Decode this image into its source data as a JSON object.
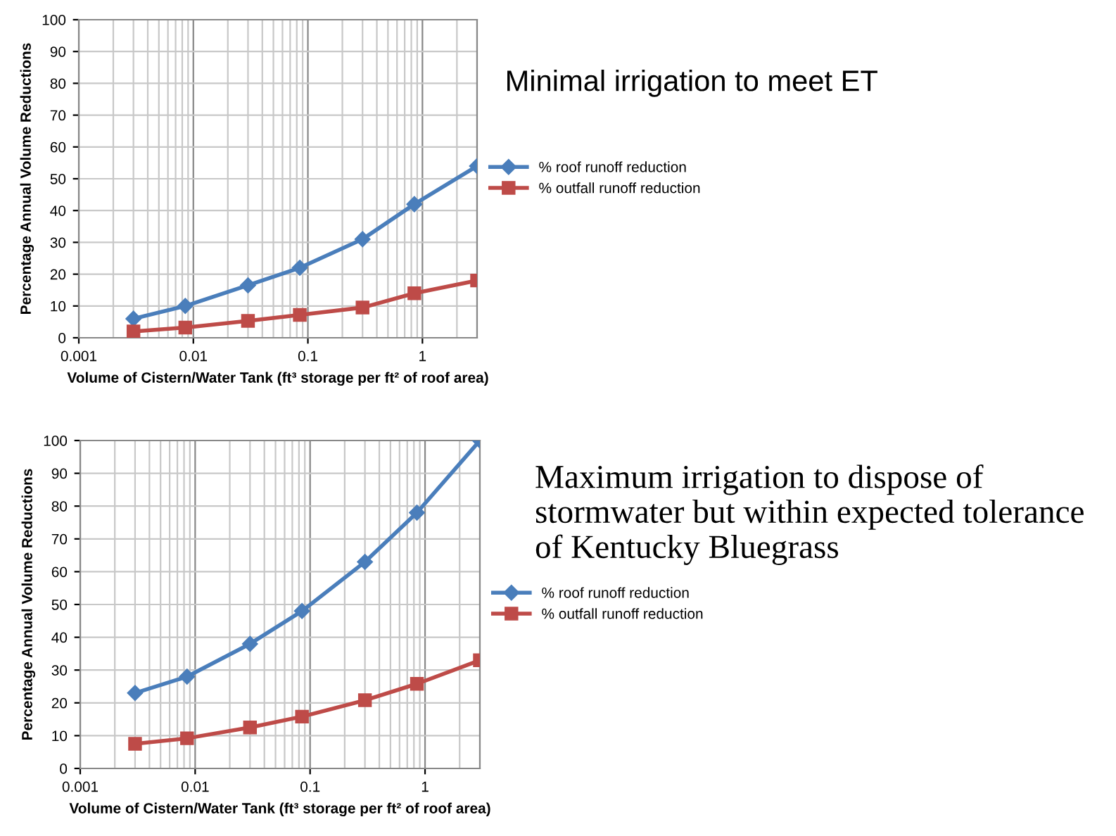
{
  "chart_data": [
    {
      "type": "line",
      "xlabel": "Volume of Cistern/Water Tank (ft³ storage per ft² of roof area)",
      "ylabel": "Percentage Annual Volume Reductions",
      "annotations": [
        "Minimal irrigation to meet ET"
      ],
      "x": [
        0.003,
        0.0085,
        0.03,
        0.085,
        0.3,
        0.85,
        3
      ],
      "series": [
        {
          "name": "% roof runoff reduction",
          "color": "#4a7ebb",
          "marker": "diamond",
          "values": [
            6,
            10,
            16.5,
            22,
            31,
            42,
            54
          ]
        },
        {
          "name": "% outfall runoff reduction",
          "color": "#be4b48",
          "marker": "square",
          "values": [
            2,
            3.2,
            5.3,
            7.2,
            9.5,
            14,
            18
          ]
        }
      ],
      "log": "x",
      "xlim": [
        0.001,
        3
      ],
      "xticks": [
        0.001,
        0.01,
        0.1,
        1
      ],
      "ylim": [
        0,
        100
      ],
      "yticks": [
        0,
        10,
        20,
        30,
        40,
        50,
        60,
        70,
        80,
        90,
        100
      ],
      "grid": true,
      "legend": "right"
    },
    {
      "type": "line",
      "xlabel": "Volume of Cistern/Water Tank (ft³ storage per ft² of roof area)",
      "ylabel": "Percentage Annual Volume Reductions",
      "annotations": [
        "Maximum irrigation to dispose of stormwater but within expected tolerance of Kentucky Bluegrass"
      ],
      "x": [
        0.003,
        0.0085,
        0.03,
        0.085,
        0.3,
        0.85,
        3
      ],
      "series": [
        {
          "name": "% roof runoff reduction",
          "color": "#4a7ebb",
          "marker": "diamond",
          "values": [
            23,
            28,
            38,
            48,
            63,
            78,
            100
          ]
        },
        {
          "name": "% outfall runoff reduction",
          "color": "#be4b48",
          "marker": "square",
          "values": [
            7.5,
            9.2,
            12.5,
            15.8,
            20.8,
            25.8,
            33
          ]
        }
      ],
      "log": "x",
      "xlim": [
        0.001,
        3
      ],
      "xticks": [
        0.001,
        0.01,
        0.1,
        1
      ],
      "ylim": [
        0,
        100
      ],
      "yticks": [
        0,
        10,
        20,
        30,
        40,
        50,
        60,
        70,
        80,
        90,
        100
      ],
      "grid": true,
      "legend": "right"
    }
  ]
}
